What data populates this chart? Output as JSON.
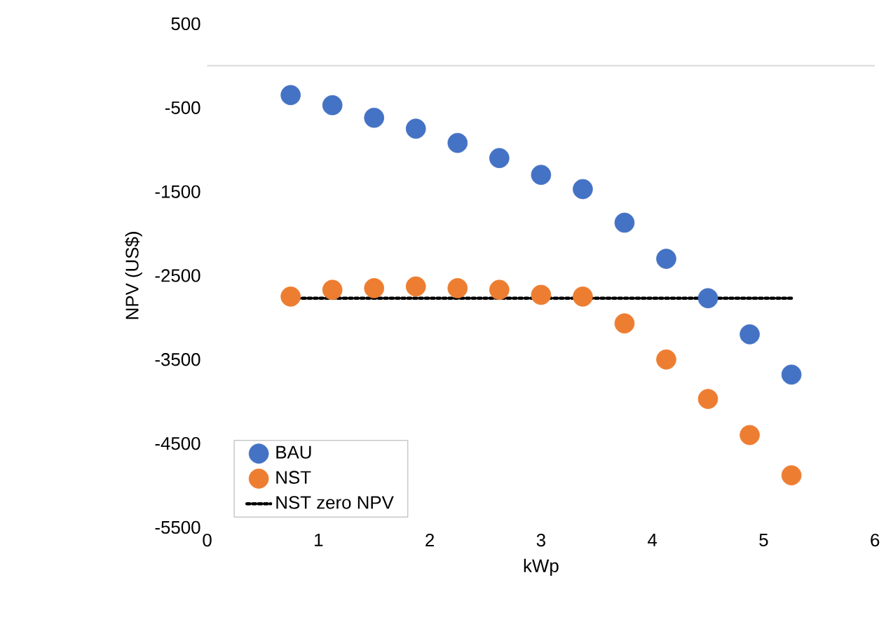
{
  "chart_data": {
    "type": "scatter",
    "xlabel": "kWp",
    "ylabel": "NPV (US$)",
    "xlim": [
      0,
      6
    ],
    "xticks": [
      0,
      1,
      2,
      3,
      4,
      5,
      6
    ],
    "ylim": [
      -5500,
      500
    ],
    "yticks": [
      -5500,
      -4500,
      -3500,
      -2500,
      -1500,
      -500,
      500
    ],
    "grid": false,
    "legend": "bottom left",
    "marker": "circle",
    "ref_lines": [
      {
        "axis": "y",
        "value": 0,
        "color": "#d9d9d9"
      }
    ],
    "series": [
      {
        "name": "BAU",
        "color": "#4472c4",
        "x": [
          0.75,
          1.125,
          1.5,
          1.875,
          2.25,
          2.625,
          3,
          3.375,
          3.75,
          4.125,
          4.5,
          4.875,
          5.25
        ],
        "values": [
          -350,
          -470,
          -620,
          -750,
          -920,
          -1100,
          -1300,
          -1470,
          -1870,
          -2300,
          -2770,
          -3200,
          -3680
        ]
      },
      {
        "name": "NST",
        "color": "#ed7d31",
        "x": [
          0.75,
          1.125,
          1.5,
          1.875,
          2.25,
          2.625,
          3,
          3.375,
          3.75,
          4.125,
          4.5,
          4.875,
          5.25
        ],
        "values": [
          -2750,
          -2670,
          -2650,
          -2630,
          -2650,
          -2670,
          -2730,
          -2750,
          -3070,
          -3500,
          -3970,
          -4400,
          -4880
        ]
      },
      {
        "name": "NST zero NPV",
        "type": "line",
        "marker": "none",
        "line_style": "dotted",
        "color": "#000000",
        "x": [
          0.75,
          5.25
        ],
        "values": [
          -2770,
          -2770
        ]
      }
    ]
  }
}
